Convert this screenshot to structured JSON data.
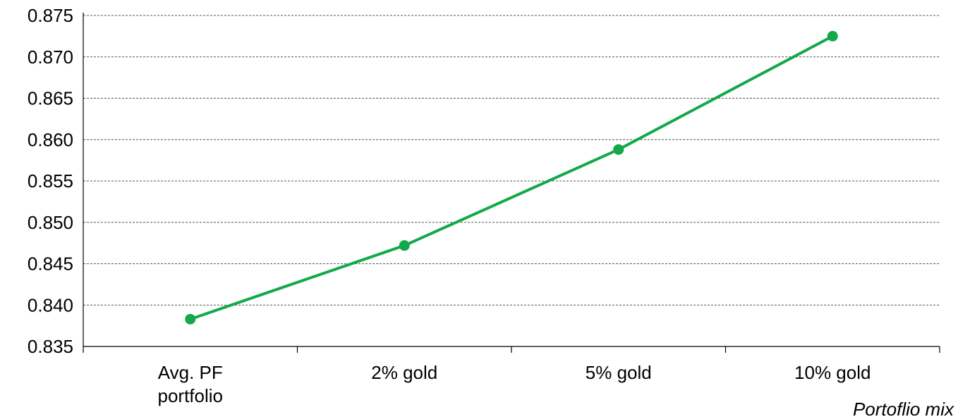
{
  "chart_data": {
    "type": "line",
    "title": "",
    "xlabel": "Portoflio mix",
    "ylabel": "",
    "categories": [
      [
        "Avg. PF",
        "portfolio"
      ],
      [
        "2% gold"
      ],
      [
        "5% gold"
      ],
      [
        "10% gold"
      ]
    ],
    "series": [
      {
        "values": [
          0.8383,
          0.8472,
          0.8588,
          0.8725
        ]
      }
    ],
    "ylim": [
      0.835,
      0.875
    ],
    "yticks": [
      "0.835",
      "0.840",
      "0.845",
      "0.850",
      "0.855",
      "0.860",
      "0.865",
      "0.870",
      "0.875"
    ],
    "grid": "horizontal-dashed",
    "legend": "none",
    "colors": {
      "series": "#13a84a",
      "grid": "#555555",
      "axis": "#000000"
    }
  }
}
